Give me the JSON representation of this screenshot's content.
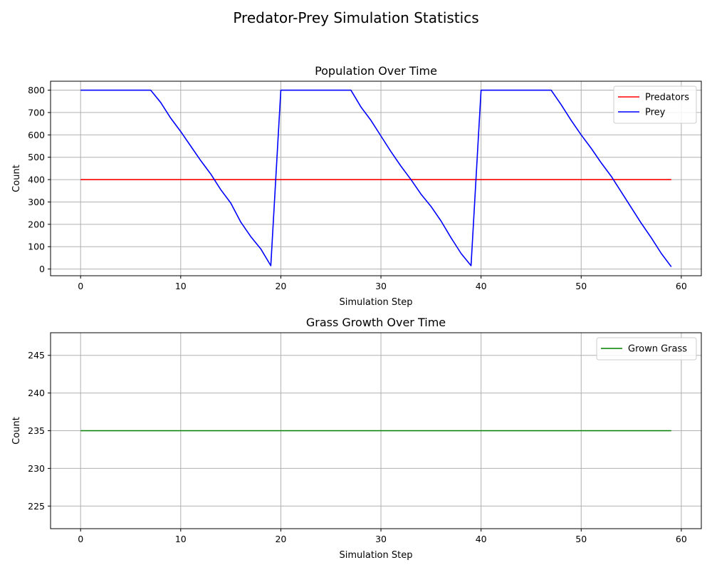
{
  "figure": {
    "suptitle": "Predator-Prey Simulation Statistics"
  },
  "chart_data": [
    {
      "type": "line",
      "title": "Population Over Time",
      "xlabel": "Simulation Step",
      "ylabel": "Count",
      "xlim": [
        -3,
        62
      ],
      "ylim": [
        -30,
        840
      ],
      "xticks": [
        0,
        10,
        20,
        30,
        40,
        50,
        60
      ],
      "yticks": [
        0,
        100,
        200,
        300,
        400,
        500,
        600,
        700,
        800
      ],
      "grid": true,
      "legend": "top-right",
      "x": [
        0,
        1,
        2,
        3,
        4,
        5,
        6,
        7,
        8,
        9,
        10,
        11,
        12,
        13,
        14,
        15,
        16,
        17,
        18,
        19,
        20,
        21,
        22,
        23,
        24,
        25,
        26,
        27,
        28,
        29,
        30,
        31,
        32,
        33,
        34,
        35,
        36,
        37,
        38,
        39,
        40,
        41,
        42,
        43,
        44,
        45,
        46,
        47,
        48,
        49,
        50,
        51,
        52,
        53,
        54,
        55,
        56,
        57,
        58,
        59
      ],
      "series": [
        {
          "name": "Predators",
          "color": "#ff0000",
          "values": [
            400,
            400,
            400,
            400,
            400,
            400,
            400,
            400,
            400,
            400,
            400,
            400,
            400,
            400,
            400,
            400,
            400,
            400,
            400,
            400,
            400,
            400,
            400,
            400,
            400,
            400,
            400,
            400,
            400,
            400,
            400,
            400,
            400,
            400,
            400,
            400,
            400,
            400,
            400,
            400,
            400,
            400,
            400,
            400,
            400,
            400,
            400,
            400,
            400,
            400,
            400,
            400,
            400,
            400,
            400,
            400,
            400,
            400,
            400,
            400
          ]
        },
        {
          "name": "Prey",
          "color": "#0000ff",
          "values": [
            800,
            800,
            800,
            800,
            800,
            800,
            800,
            800,
            745,
            675,
            615,
            550,
            485,
            425,
            355,
            295,
            210,
            145,
            90,
            15,
            800,
            800,
            800,
            800,
            800,
            800,
            800,
            800,
            725,
            665,
            595,
            525,
            460,
            400,
            335,
            280,
            215,
            140,
            70,
            15,
            800,
            800,
            800,
            800,
            800,
            800,
            800,
            800,
            735,
            665,
            600,
            540,
            475,
            415,
            345,
            275,
            205,
            140,
            70,
            10
          ]
        }
      ]
    },
    {
      "type": "line",
      "title": "Grass Growth Over Time",
      "xlabel": "Simulation Step",
      "ylabel": "Count",
      "xlim": [
        -3,
        62
      ],
      "ylim": [
        222,
        248
      ],
      "xticks": [
        0,
        10,
        20,
        30,
        40,
        50,
        60
      ],
      "yticks": [
        225,
        230,
        235,
        240,
        245
      ],
      "grid": true,
      "legend": "top-right",
      "x": [
        0,
        1,
        2,
        3,
        4,
        5,
        6,
        7,
        8,
        9,
        10,
        11,
        12,
        13,
        14,
        15,
        16,
        17,
        18,
        19,
        20,
        21,
        22,
        23,
        24,
        25,
        26,
        27,
        28,
        29,
        30,
        31,
        32,
        33,
        34,
        35,
        36,
        37,
        38,
        39,
        40,
        41,
        42,
        43,
        44,
        45,
        46,
        47,
        48,
        49,
        50,
        51,
        52,
        53,
        54,
        55,
        56,
        57,
        58,
        59
      ],
      "series": [
        {
          "name": "Grown Grass",
          "color": "#008000",
          "values": [
            235,
            235,
            235,
            235,
            235,
            235,
            235,
            235,
            235,
            235,
            235,
            235,
            235,
            235,
            235,
            235,
            235,
            235,
            235,
            235,
            235,
            235,
            235,
            235,
            235,
            235,
            235,
            235,
            235,
            235,
            235,
            235,
            235,
            235,
            235,
            235,
            235,
            235,
            235,
            235,
            235,
            235,
            235,
            235,
            235,
            235,
            235,
            235,
            235,
            235,
            235,
            235,
            235,
            235,
            235,
            235,
            235,
            235,
            235,
            235
          ]
        }
      ]
    }
  ]
}
